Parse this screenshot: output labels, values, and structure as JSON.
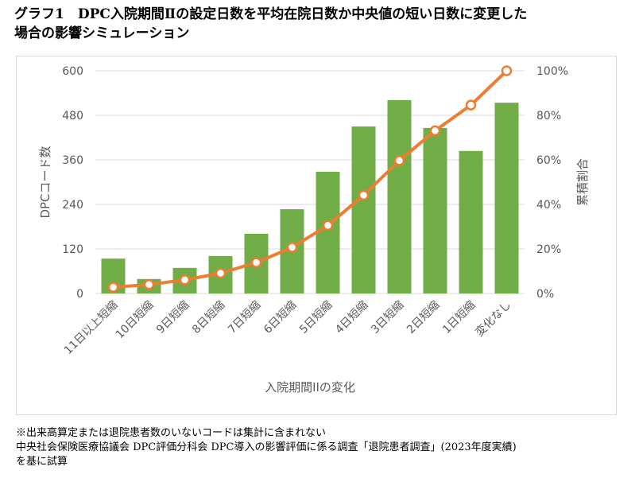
{
  "title_line1": "グラフ1　DPC入院期間Ⅱの設定日数を平均在院日数か中央値の短い日数に変更した",
  "title_line2": "場合の影響シミュレーション",
  "notes": [
    "※出来高算定または退院患者数のいないコードは集計に含まれない",
    "中央社会保険医療協議会 DPC評価分科会 DPC導入の影響評価に係る調査「退院患者調査」(2023年度実績)",
    "を基に試算"
  ],
  "chart_data": {
    "type": "bar",
    "categories": [
      "11日以上短縮",
      "10日短縮",
      "9日短縮",
      "8日短縮",
      "7日短縮",
      "6日短縮",
      "5日短縮",
      "4日短縮",
      "3日短縮",
      "2日短縮",
      "1日短縮",
      "変化なし"
    ],
    "series": [
      {
        "name": "DPCコード数",
        "type": "bar",
        "axis": "left",
        "color": "#70ad47",
        "values": [
          94,
          39,
          69,
          101,
          161,
          227,
          328,
          450,
          521,
          446,
          384,
          514
        ]
      },
      {
        "name": "累積割合",
        "type": "line",
        "axis": "right",
        "color": "#ed7d31",
        "values": [
          2.8,
          4.0,
          6.1,
          9.1,
          13.9,
          20.7,
          30.6,
          44.1,
          59.7,
          73.1,
          84.6,
          100
        ]
      }
    ],
    "xlabel": "入院期間IIの変化",
    "ylabel": "DPCコード数",
    "y2label": "累積割合",
    "ylim": [
      0,
      600
    ],
    "yticks": [
      "0",
      "120",
      "240",
      "360",
      "480",
      "600"
    ],
    "y2lim": [
      0,
      100
    ],
    "y2ticks": [
      "0%",
      "20%",
      "40%",
      "60%",
      "80%",
      "100%"
    ],
    "grid": true
  }
}
